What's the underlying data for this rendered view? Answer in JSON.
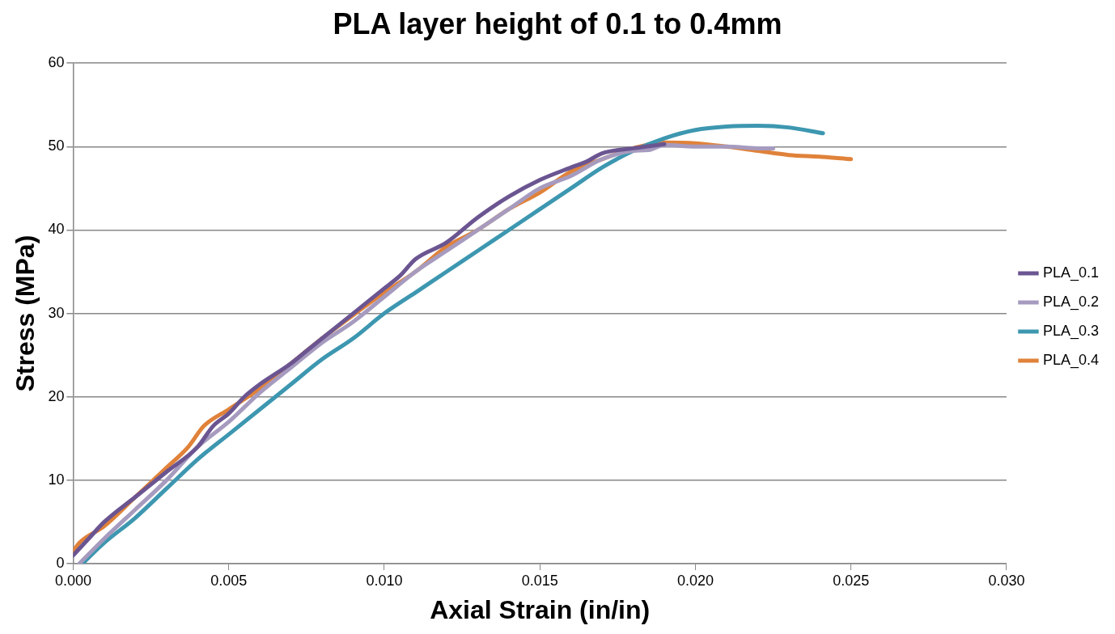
{
  "chart_data": {
    "type": "line",
    "title": "PLA layer height of 0.1 to 0.4mm",
    "xlabel": "Axial Strain (in/in)",
    "ylabel": "Stress (MPa)",
    "xlim": [
      0,
      0.03
    ],
    "xticks": [
      {
        "value": 0,
        "label": "0.000"
      },
      {
        "value": 0.005,
        "label": "0.005"
      },
      {
        "value": 0.01,
        "label": "0.010"
      },
      {
        "value": 0.015,
        "label": "0.015"
      },
      {
        "value": 0.02,
        "label": "0.020"
      },
      {
        "value": 0.025,
        "label": "0.025"
      },
      {
        "value": 0.03,
        "label": "0.030"
      }
    ],
    "ylim": [
      0,
      60
    ],
    "yticks": [
      0,
      10,
      20,
      30,
      40,
      50,
      60
    ],
    "grid": "y",
    "legend": "right",
    "marker": "none",
    "line_style": "solid",
    "series": [
      {
        "name": "PLA_0.1",
        "color": "#6b5591",
        "x": [
          0,
          0.0005,
          0.001,
          0.002,
          0.003,
          0.004,
          0.0045,
          0.005,
          0.0055,
          0.006,
          0.007,
          0.0075,
          0.008,
          0.009,
          0.01,
          0.0105,
          0.011,
          0.012,
          0.013,
          0.014,
          0.015,
          0.016,
          0.0165,
          0.017,
          0.018,
          0.019
        ],
        "values": [
          1,
          3,
          5,
          8,
          11,
          14,
          16.5,
          18,
          20,
          21.5,
          24,
          25.5,
          27,
          30,
          33,
          34.5,
          36.5,
          38.5,
          41.5,
          44,
          46,
          47.5,
          48.2,
          49.2,
          49.8,
          50.3
        ]
      },
      {
        "name": "PLA_0.2",
        "color": "#a69bbf",
        "x": [
          0.0002,
          0.001,
          0.002,
          0.003,
          0.004,
          0.005,
          0.006,
          0.007,
          0.008,
          0.009,
          0.01,
          0.011,
          0.012,
          0.013,
          0.014,
          0.015,
          0.016,
          0.017,
          0.018,
          0.0185,
          0.019,
          0.02,
          0.021,
          0.022,
          0.0225
        ],
        "values": [
          0,
          3,
          6.5,
          10,
          14,
          17,
          20.5,
          23.5,
          26.5,
          29,
          32,
          35,
          37.5,
          40,
          42.5,
          45,
          46.5,
          48.5,
          49.5,
          49.6,
          50.2,
          50,
          50,
          49.8,
          49.8
        ]
      },
      {
        "name": "PLA_0.3",
        "color": "#3d97b0",
        "x": [
          0.0003,
          0.001,
          0.002,
          0.003,
          0.004,
          0.005,
          0.006,
          0.007,
          0.008,
          0.009,
          0.01,
          0.011,
          0.012,
          0.013,
          0.014,
          0.015,
          0.016,
          0.017,
          0.018,
          0.019,
          0.02,
          0.021,
          0.022,
          0.023,
          0.0241
        ],
        "values": [
          0,
          2.5,
          5.5,
          9,
          12.5,
          15.5,
          18.5,
          21.5,
          24.5,
          27,
          30,
          32.5,
          35,
          37.5,
          40,
          42.5,
          45,
          47.5,
          49.5,
          51,
          52,
          52.4,
          52.5,
          52.3,
          51.6
        ]
      },
      {
        "name": "PLA_0.4",
        "color": "#e0823a",
        "x": [
          0,
          0.0002,
          0.001,
          0.002,
          0.003,
          0.0037,
          0.0042,
          0.005,
          0.006,
          0.007,
          0.008,
          0.009,
          0.01,
          0.011,
          0.012,
          0.013,
          0.014,
          0.015,
          0.016,
          0.017,
          0.018,
          0.019,
          0.02,
          0.021,
          0.022,
          0.023,
          0.024,
          0.025
        ],
        "values": [
          1.5,
          2.5,
          4.5,
          8,
          11.5,
          14,
          16.5,
          18.5,
          21,
          24,
          27,
          29.8,
          32.5,
          35,
          38,
          40,
          42.5,
          44.5,
          47,
          48.5,
          49.8,
          50.5,
          50.4,
          50,
          49.5,
          49,
          48.8,
          48.5
        ]
      }
    ]
  }
}
